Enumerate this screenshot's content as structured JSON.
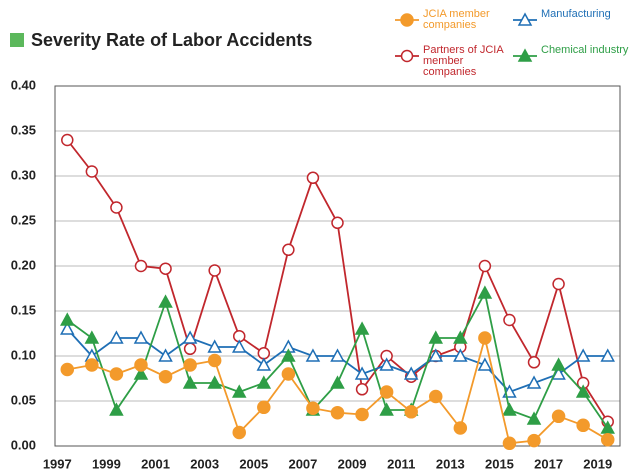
{
  "chart_data": {
    "type": "line",
    "title": "Severity Rate of Labor Accidents",
    "x": [
      1997,
      1998,
      1999,
      2000,
      2001,
      2002,
      2003,
      2004,
      2005,
      2006,
      2007,
      2008,
      2009,
      2010,
      2011,
      2012,
      2013,
      2014,
      2015,
      2016,
      2017,
      2018,
      2019
    ],
    "xlim": [
      1996.5,
      2019.5
    ],
    "xticks": [
      1997,
      1999,
      2001,
      2003,
      2005,
      2007,
      2009,
      2011,
      2013,
      2015,
      2017,
      2019
    ],
    "ylim": [
      0,
      0.4
    ],
    "yticks": [
      {
        "value": 0,
        "label": "0.00"
      },
      0.05,
      {
        "value": 0.1,
        "label": "0.10"
      },
      0.15,
      {
        "value": 0.2,
        "label": "0.20"
      },
      0.25,
      {
        "value": 0.3,
        "label": "0.30"
      },
      0.35,
      {
        "value": 0.4,
        "label": "0.40"
      }
    ],
    "grid": true,
    "series": [
      {
        "name": "JCIA member companies",
        "color": "#f39a2b",
        "marker": "circle-filled",
        "values": [
          0.085,
          0.09,
          0.08,
          0.09,
          0.077,
          0.09,
          0.095,
          0.015,
          0.043,
          0.08,
          0.042,
          0.037,
          0.035,
          0.06,
          0.038,
          0.055,
          0.02,
          0.12,
          0.003,
          0.006,
          0.033,
          0.023,
          0.007
        ]
      },
      {
        "name": "Partners of JCIA member companies",
        "color": "#c1272d",
        "marker": "circle-open",
        "values": [
          0.34,
          0.305,
          0.265,
          0.2,
          0.197,
          0.108,
          0.195,
          0.122,
          0.103,
          0.218,
          0.298,
          0.248,
          0.063,
          0.1,
          0.077,
          0.1,
          0.11,
          0.2,
          0.14,
          0.093,
          0.18,
          0.07,
          0.027
        ]
      },
      {
        "name": "Manufacturing",
        "color": "#1f6fb5",
        "marker": "triangle-open",
        "values": [
          0.13,
          0.1,
          0.12,
          0.12,
          0.1,
          0.12,
          0.11,
          0.11,
          0.09,
          0.11,
          0.1,
          0.1,
          0.08,
          0.09,
          0.08,
          0.1,
          0.1,
          0.09,
          0.06,
          0.07,
          0.08,
          0.1,
          0.1
        ]
      },
      {
        "name": "Chemical industry",
        "color": "#2e9e46",
        "marker": "triangle-filled",
        "values": [
          0.14,
          0.12,
          0.04,
          0.08,
          0.16,
          0.07,
          0.07,
          0.06,
          0.07,
          0.1,
          0.04,
          0.07,
          0.13,
          0.04,
          0.04,
          0.12,
          0.12,
          0.17,
          0.04,
          0.03,
          0.09,
          0.06,
          0.02
        ]
      }
    ]
  }
}
